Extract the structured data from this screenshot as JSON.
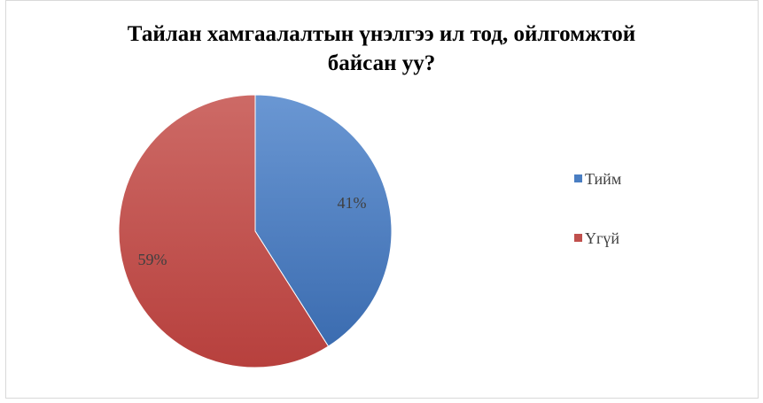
{
  "title_line1": "Тайлан хамгаалалтын үнэлгээ ил тод, ойлгомжтой",
  "title_line2": "байсан уу?",
  "chart_data": {
    "type": "pie",
    "title": "Тайлан хамгаалалтын үнэлгээ ил тод, ойлгомжтой байсан уу?",
    "categories": [
      "Тийм",
      "Үгүй"
    ],
    "values": [
      41,
      59
    ],
    "labels": [
      "41%",
      "59%"
    ],
    "colors": [
      "#4a7ec2",
      "#c0504d"
    ],
    "legend": "right"
  }
}
